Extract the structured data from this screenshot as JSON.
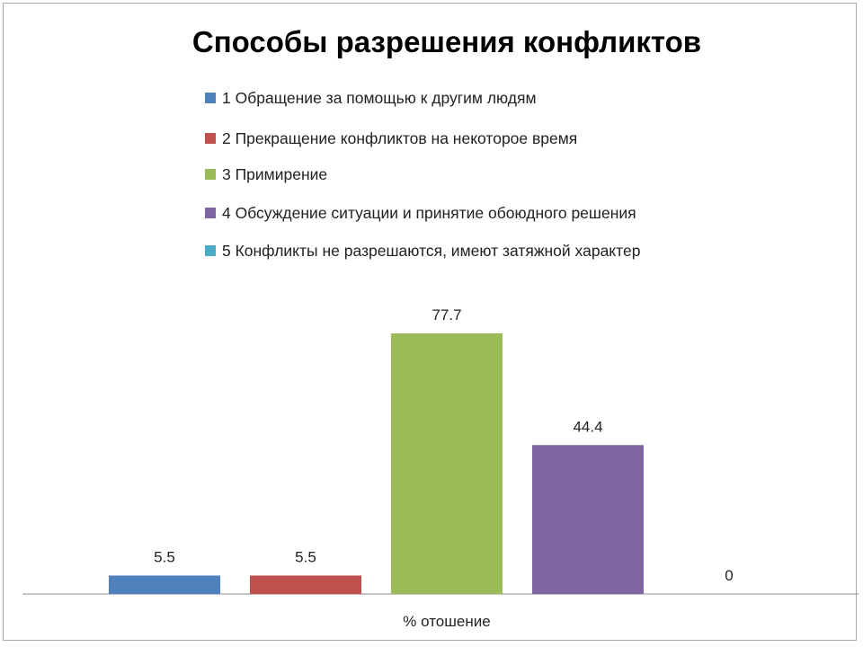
{
  "chart_data": {
    "type": "bar",
    "title": "Способы разрешения конфликтов",
    "categories": [
      "% отошение"
    ],
    "series": [
      {
        "name": "1 Обращение за помощью к другим людям",
        "values": [
          5.5
        ],
        "color": "#4f81bd"
      },
      {
        "name": "2  Прекращение конфликтов на некоторое время",
        "values": [
          5.5
        ],
        "color": "#c0504d"
      },
      {
        "name": "3 Примирение",
        "values": [
          77.7
        ],
        "color": "#9bbb59"
      },
      {
        "name": "4 Обсуждение ситуации и принятие обоюдного решения",
        "values": [
          44.4
        ],
        "color": "#8064a2"
      },
      {
        "name": "5 Конфликты не разрешаются, имеют затяжной характер",
        "values": [
          0
        ],
        "color": "#4bacc6"
      }
    ],
    "data_labels": [
      "5.5",
      "5.5",
      "77.7",
      "44.4",
      "0"
    ],
    "xlabel": "",
    "ylabel": "",
    "legend_position": "top",
    "grid": false
  }
}
